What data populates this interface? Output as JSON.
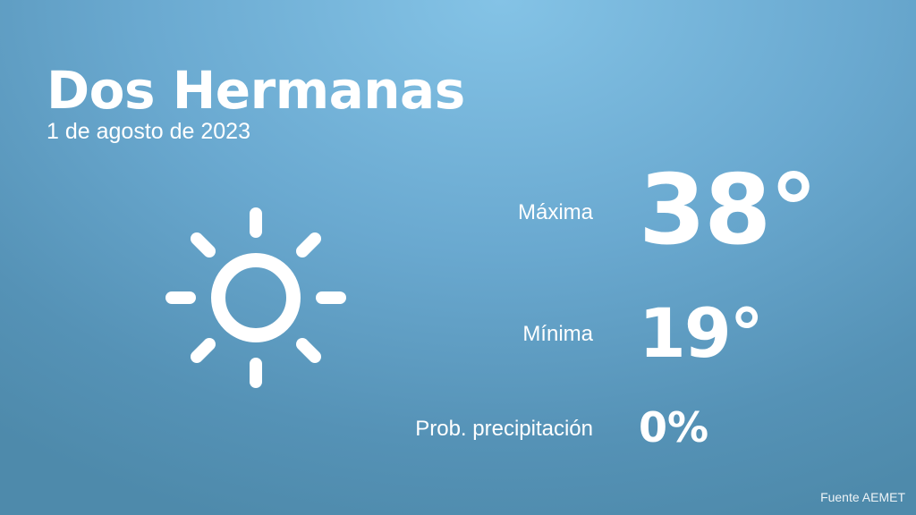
{
  "header": {
    "city": "Dos Hermanas",
    "date": "1 de agosto de 2023"
  },
  "weather": {
    "icon": "sun-icon",
    "condition_color": "#ffffff"
  },
  "stats": [
    {
      "label": "Máxima",
      "value": "38°"
    },
    {
      "label": "Mínima",
      "value": "19°"
    },
    {
      "label": "Prob. precipitación",
      "value": "0%"
    }
  ],
  "footer": {
    "source": "Fuente AEMET"
  },
  "colors": {
    "background_top": "#84c3e6",
    "background_bottom": "#4e8aab",
    "text": "#ffffff"
  }
}
